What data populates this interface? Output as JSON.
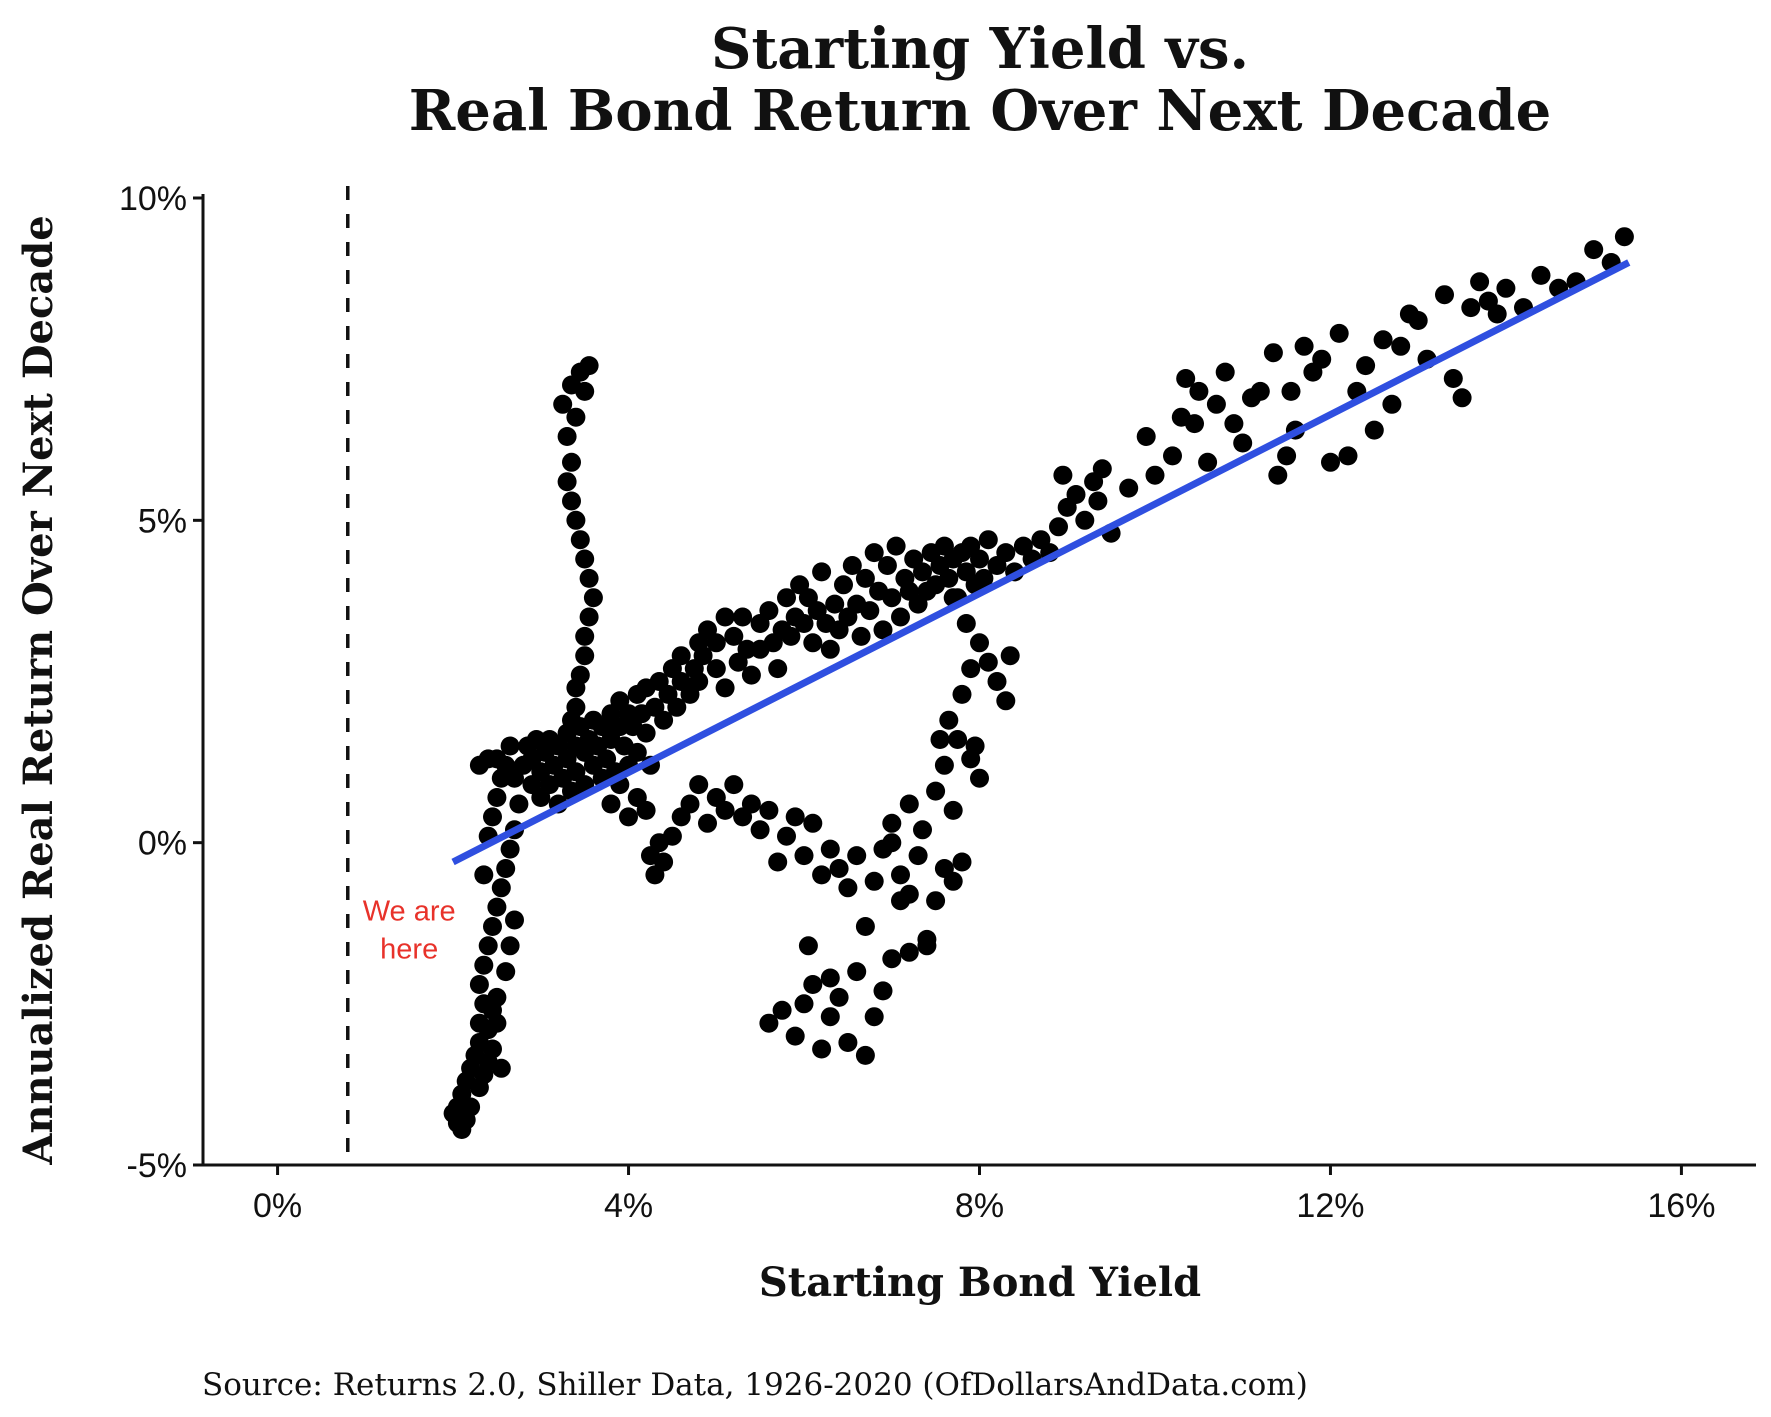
{
  "chart_data": {
    "type": "scatter",
    "title_lines": [
      "Starting Yield vs.",
      "Real Bond Return Over Next Decade"
    ],
    "xlabel": "Starting Bond Yield",
    "ylabel": "Annualized Real Return Over Next Decade",
    "xlim": [
      -0.85,
      16.85
    ],
    "ylim": [
      -5.0,
      10.0
    ],
    "x_ticks": [
      0,
      4,
      8,
      12,
      16
    ],
    "x_tick_labels": [
      "0%",
      "4%",
      "8%",
      "12%",
      "16%"
    ],
    "y_ticks": [
      -5,
      0,
      5,
      10
    ],
    "y_tick_labels": [
      "-5%",
      "0%",
      "5%",
      "10%"
    ],
    "grid": false,
    "legend": "none",
    "reference_line": {
      "x": 0.8,
      "style": "dashed",
      "color": "#111111"
    },
    "annotation": {
      "lines": [
        "We are",
        "here"
      ],
      "x": 1.5,
      "y": -1.35,
      "color": "#e8322a"
    },
    "trend_line": {
      "x": [
        2.0,
        15.4
      ],
      "y": [
        -0.3,
        9.0
      ],
      "color": "#2f4fe0"
    },
    "point_color": "#000000",
    "points": [
      [
        2.0,
        -4.2
      ],
      [
        2.05,
        -4.35
      ],
      [
        2.1,
        -4.45
      ],
      [
        2.05,
        -4.1
      ],
      [
        2.15,
        -4.3
      ],
      [
        2.1,
        -3.9
      ],
      [
        2.2,
        -4.1
      ],
      [
        2.15,
        -3.7
      ],
      [
        2.2,
        -3.5
      ],
      [
        2.25,
        -3.3
      ],
      [
        2.3,
        -3.8
      ],
      [
        2.3,
        -3.1
      ],
      [
        2.35,
        -3.6
      ],
      [
        2.3,
        -2.8
      ],
      [
        2.4,
        -3.4
      ],
      [
        2.35,
        -2.5
      ],
      [
        2.45,
        -3.2
      ],
      [
        2.3,
        -2.2
      ],
      [
        2.4,
        -2.9
      ],
      [
        2.35,
        -1.9
      ],
      [
        2.45,
        -2.6
      ],
      [
        2.4,
        -1.6
      ],
      [
        2.5,
        -2.4
      ],
      [
        2.45,
        -1.3
      ],
      [
        2.5,
        -2.8
      ],
      [
        2.55,
        -3.5
      ],
      [
        2.5,
        -1.0
      ],
      [
        2.55,
        -0.7
      ],
      [
        2.6,
        -2.0
      ],
      [
        2.6,
        -0.4
      ],
      [
        2.65,
        -1.6
      ],
      [
        2.65,
        -0.1
      ],
      [
        2.7,
        -1.2
      ],
      [
        2.7,
        0.2
      ],
      [
        2.35,
        -0.5
      ],
      [
        2.4,
        0.1
      ],
      [
        2.45,
        0.4
      ],
      [
        2.5,
        0.7
      ],
      [
        2.55,
        1.0
      ],
      [
        2.6,
        1.2
      ],
      [
        2.4,
        1.3
      ],
      [
        2.3,
        1.2
      ],
      [
        2.5,
        1.3
      ],
      [
        2.65,
        1.5
      ],
      [
        2.7,
        1.0
      ],
      [
        2.75,
        0.6
      ],
      [
        2.8,
        1.2
      ],
      [
        2.85,
        1.5
      ],
      [
        2.9,
        0.9
      ],
      [
        2.9,
        1.3
      ],
      [
        2.95,
        1.6
      ],
      [
        3.0,
        1.1
      ],
      [
        3.0,
        0.7
      ],
      [
        3.05,
        1.4
      ],
      [
        3.1,
        0.9
      ],
      [
        3.1,
        1.6
      ],
      [
        3.15,
        1.2
      ],
      [
        3.2,
        0.6
      ],
      [
        3.2,
        1.5
      ],
      [
        3.25,
        1.0
      ],
      [
        3.3,
        1.7
      ],
      [
        3.3,
        1.3
      ],
      [
        3.35,
        0.8
      ],
      [
        3.4,
        1.5
      ],
      [
        3.4,
        1.1
      ],
      [
        3.45,
        1.8
      ],
      [
        3.5,
        1.4
      ],
      [
        3.5,
        0.9
      ],
      [
        3.55,
        1.6
      ],
      [
        3.6,
        1.2
      ],
      [
        3.6,
        1.9
      ],
      [
        3.65,
        1.5
      ],
      [
        3.7,
        1.0
      ],
      [
        3.7,
        1.8
      ],
      [
        3.75,
        1.3
      ],
      [
        3.8,
        2.0
      ],
      [
        3.8,
        1.6
      ],
      [
        3.85,
        1.1
      ],
      [
        3.9,
        1.8
      ],
      [
        3.9,
        2.2
      ],
      [
        3.95,
        1.5
      ],
      [
        4.0,
        2.0
      ],
      [
        4.0,
        1.2
      ],
      [
        4.05,
        1.8
      ],
      [
        4.1,
        2.3
      ],
      [
        4.1,
        1.4
      ],
      [
        4.15,
        2.0
      ],
      [
        4.2,
        1.7
      ],
      [
        4.2,
        2.4
      ],
      [
        4.25,
        1.2
      ],
      [
        4.3,
        2.1
      ],
      [
        4.35,
        2.5
      ],
      [
        4.4,
        1.9
      ],
      [
        4.45,
        2.3
      ],
      [
        4.5,
        2.7
      ],
      [
        4.55,
        2.1
      ],
      [
        4.6,
        2.5
      ],
      [
        4.6,
        2.9
      ],
      [
        4.7,
        2.3
      ],
      [
        4.75,
        2.7
      ],
      [
        4.8,
        3.1
      ],
      [
        4.8,
        2.5
      ],
      [
        4.85,
        2.9
      ],
      [
        4.9,
        3.3
      ],
      [
        5.0,
        2.7
      ],
      [
        5.0,
        3.1
      ],
      [
        5.1,
        3.5
      ],
      [
        5.1,
        2.4
      ],
      [
        5.2,
        3.2
      ],
      [
        5.25,
        2.8
      ],
      [
        5.3,
        3.5
      ],
      [
        5.35,
        3.0
      ],
      [
        5.4,
        2.6
      ],
      [
        5.5,
        3.4
      ],
      [
        5.5,
        3.0
      ],
      [
        5.6,
        3.6
      ],
      [
        5.65,
        3.1
      ],
      [
        5.7,
        2.7
      ],
      [
        5.75,
        3.3
      ],
      [
        5.8,
        3.8
      ],
      [
        5.85,
        3.2
      ],
      [
        5.9,
        3.5
      ],
      [
        5.95,
        4.0
      ],
      [
        6.0,
        3.4
      ],
      [
        6.05,
        3.8
      ],
      [
        6.1,
        3.1
      ],
      [
        6.15,
        3.6
      ],
      [
        6.2,
        4.2
      ],
      [
        6.25,
        3.4
      ],
      [
        6.3,
        3.0
      ],
      [
        6.35,
        3.7
      ],
      [
        6.4,
        3.3
      ],
      [
        6.45,
        4.0
      ],
      [
        6.5,
        3.5
      ],
      [
        6.55,
        4.3
      ],
      [
        6.6,
        3.7
      ],
      [
        6.65,
        3.2
      ],
      [
        6.7,
        4.1
      ],
      [
        6.75,
        3.6
      ],
      [
        6.8,
        4.5
      ],
      [
        6.85,
        3.9
      ],
      [
        6.9,
        3.3
      ],
      [
        6.95,
        4.3
      ],
      [
        7.0,
        3.8
      ],
      [
        7.05,
        4.6
      ],
      [
        7.1,
        3.5
      ],
      [
        7.15,
        4.1
      ],
      [
        7.2,
        3.9
      ],
      [
        7.25,
        4.4
      ],
      [
        7.3,
        3.7
      ],
      [
        7.35,
        4.2
      ],
      [
        7.4,
        3.9
      ],
      [
        7.45,
        4.5
      ],
      [
        7.5,
        4.0
      ],
      [
        7.55,
        4.3
      ],
      [
        7.6,
        4.6
      ],
      [
        7.65,
        4.1
      ],
      [
        7.7,
        4.4
      ],
      [
        7.75,
        3.8
      ],
      [
        7.8,
        4.5
      ],
      [
        7.85,
        4.2
      ],
      [
        7.9,
        4.6
      ],
      [
        7.95,
        4.0
      ],
      [
        8.0,
        4.4
      ],
      [
        8.05,
        4.1
      ],
      [
        8.1,
        4.7
      ],
      [
        8.2,
        4.3
      ],
      [
        8.3,
        4.5
      ],
      [
        8.4,
        4.2
      ],
      [
        8.5,
        4.6
      ],
      [
        8.6,
        4.4
      ],
      [
        8.7,
        4.7
      ],
      [
        8.8,
        4.5
      ],
      [
        8.9,
        4.9
      ],
      [
        9.0,
        5.2
      ],
      [
        8.95,
        5.7
      ],
      [
        9.1,
        5.4
      ],
      [
        9.2,
        5.0
      ],
      [
        9.3,
        5.6
      ],
      [
        9.35,
        5.3
      ],
      [
        9.5,
        4.8
      ],
      [
        9.4,
        5.8
      ],
      [
        9.7,
        5.5
      ],
      [
        9.9,
        6.3
      ],
      [
        10.0,
        5.7
      ],
      [
        10.2,
        6.0
      ],
      [
        10.3,
        6.6
      ],
      [
        10.35,
        7.2
      ],
      [
        10.45,
        6.5
      ],
      [
        10.5,
        7.0
      ],
      [
        10.6,
        5.9
      ],
      [
        10.7,
        6.8
      ],
      [
        10.8,
        7.3
      ],
      [
        10.9,
        6.5
      ],
      [
        11.0,
        6.2
      ],
      [
        11.1,
        6.9
      ],
      [
        11.2,
        7.0
      ],
      [
        11.35,
        7.6
      ],
      [
        11.4,
        5.7
      ],
      [
        11.5,
        6.0
      ],
      [
        11.55,
        7.0
      ],
      [
        11.6,
        6.4
      ],
      [
        11.7,
        7.7
      ],
      [
        11.8,
        7.3
      ],
      [
        11.9,
        7.5
      ],
      [
        12.0,
        5.9
      ],
      [
        12.1,
        7.9
      ],
      [
        12.2,
        6.0
      ],
      [
        12.3,
        7.0
      ],
      [
        12.4,
        7.4
      ],
      [
        12.5,
        6.4
      ],
      [
        12.6,
        7.8
      ],
      [
        12.7,
        6.8
      ],
      [
        12.8,
        7.7
      ],
      [
        12.9,
        8.2
      ],
      [
        13.0,
        8.1
      ],
      [
        13.1,
        7.5
      ],
      [
        13.3,
        8.5
      ],
      [
        13.4,
        7.2
      ],
      [
        13.5,
        6.9
      ],
      [
        13.6,
        8.3
      ],
      [
        13.7,
        8.7
      ],
      [
        13.8,
        8.4
      ],
      [
        13.9,
        8.2
      ],
      [
        14.0,
        8.6
      ],
      [
        14.2,
        8.3
      ],
      [
        14.4,
        8.8
      ],
      [
        14.6,
        8.6
      ],
      [
        14.8,
        8.7
      ],
      [
        15.0,
        9.2
      ],
      [
        15.2,
        9.0
      ],
      [
        15.35,
        9.4
      ],
      [
        3.25,
        6.8
      ],
      [
        3.35,
        7.1
      ],
      [
        3.45,
        7.3
      ],
      [
        3.55,
        7.4
      ],
      [
        3.5,
        7.0
      ],
      [
        3.4,
        6.6
      ],
      [
        3.3,
        6.3
      ],
      [
        3.35,
        5.9
      ],
      [
        3.3,
        5.6
      ],
      [
        3.35,
        5.3
      ],
      [
        3.4,
        5.0
      ],
      [
        3.45,
        4.7
      ],
      [
        3.5,
        4.4
      ],
      [
        3.55,
        4.1
      ],
      [
        3.6,
        3.8
      ],
      [
        3.55,
        3.5
      ],
      [
        3.5,
        3.2
      ],
      [
        3.5,
        2.9
      ],
      [
        3.45,
        2.6
      ],
      [
        3.4,
        2.4
      ],
      [
        3.4,
        2.1
      ],
      [
        3.35,
        1.9
      ],
      [
        3.8,
        0.6
      ],
      [
        3.9,
        0.9
      ],
      [
        4.0,
        0.4
      ],
      [
        4.1,
        0.7
      ],
      [
        4.2,
        0.5
      ],
      [
        4.25,
        -0.2
      ],
      [
        4.3,
        -0.5
      ],
      [
        4.35,
        0.0
      ],
      [
        4.4,
        -0.3
      ],
      [
        4.5,
        0.1
      ],
      [
        4.6,
        0.4
      ],
      [
        4.7,
        0.6
      ],
      [
        4.8,
        0.9
      ],
      [
        4.9,
        0.3
      ],
      [
        5.0,
        0.7
      ],
      [
        5.1,
        0.5
      ],
      [
        5.2,
        0.9
      ],
      [
        5.3,
        0.4
      ],
      [
        5.4,
        0.6
      ],
      [
        5.5,
        0.2
      ],
      [
        5.6,
        0.5
      ],
      [
        5.7,
        -0.3
      ],
      [
        5.8,
        0.1
      ],
      [
        5.9,
        0.4
      ],
      [
        6.0,
        -0.2
      ],
      [
        6.1,
        0.3
      ],
      [
        6.2,
        -0.5
      ],
      [
        6.3,
        -0.1
      ],
      [
        6.4,
        -0.4
      ],
      [
        6.5,
        -0.7
      ],
      [
        6.6,
        -0.2
      ],
      [
        6.7,
        -1.3
      ],
      [
        6.8,
        -0.6
      ],
      [
        6.9,
        -0.1
      ],
      [
        7.0,
        0.0
      ],
      [
        7.1,
        -0.5
      ],
      [
        7.2,
        -0.8
      ],
      [
        7.3,
        -0.2
      ],
      [
        7.4,
        -1.6
      ],
      [
        7.5,
        -0.9
      ],
      [
        7.6,
        -0.4
      ],
      [
        7.7,
        -0.6
      ],
      [
        7.8,
        -0.3
      ],
      [
        5.6,
        -2.8
      ],
      [
        5.75,
        -2.6
      ],
      [
        5.9,
        -3.0
      ],
      [
        6.0,
        -2.5
      ],
      [
        6.1,
        -2.2
      ],
      [
        6.2,
        -3.2
      ],
      [
        6.3,
        -2.7
      ],
      [
        6.4,
        -2.4
      ],
      [
        6.5,
        -3.1
      ],
      [
        6.6,
        -2.0
      ],
      [
        6.7,
        -3.3
      ],
      [
        6.8,
        -2.7
      ],
      [
        6.9,
        -2.3
      ],
      [
        7.0,
        -1.8
      ],
      [
        7.2,
        -1.7
      ],
      [
        7.4,
        -1.5
      ],
      [
        7.1,
        -0.9
      ],
      [
        6.05,
        -1.6
      ],
      [
        6.3,
        -2.1
      ],
      [
        7.0,
        0.3
      ],
      [
        7.2,
        0.6
      ],
      [
        7.35,
        0.2
      ],
      [
        7.5,
        0.8
      ],
      [
        7.6,
        1.2
      ],
      [
        7.7,
        0.5
      ],
      [
        7.75,
        1.6
      ],
      [
        7.9,
        1.3
      ],
      [
        8.0,
        1.0
      ],
      [
        7.95,
        1.5
      ],
      [
        7.55,
        1.6
      ],
      [
        7.65,
        1.9
      ],
      [
        7.8,
        2.3
      ],
      [
        7.9,
        2.7
      ],
      [
        8.0,
        3.1
      ],
      [
        8.1,
        2.8
      ],
      [
        8.2,
        2.5
      ],
      [
        8.3,
        2.2
      ],
      [
        8.35,
        2.9
      ],
      [
        7.85,
        3.4
      ],
      [
        7.7,
        3.8
      ]
    ]
  },
  "footer": {
    "source_text": "Source:  Returns 2.0, Shiller Data, 1926-2020 (OfDollarsAndData.com)"
  }
}
